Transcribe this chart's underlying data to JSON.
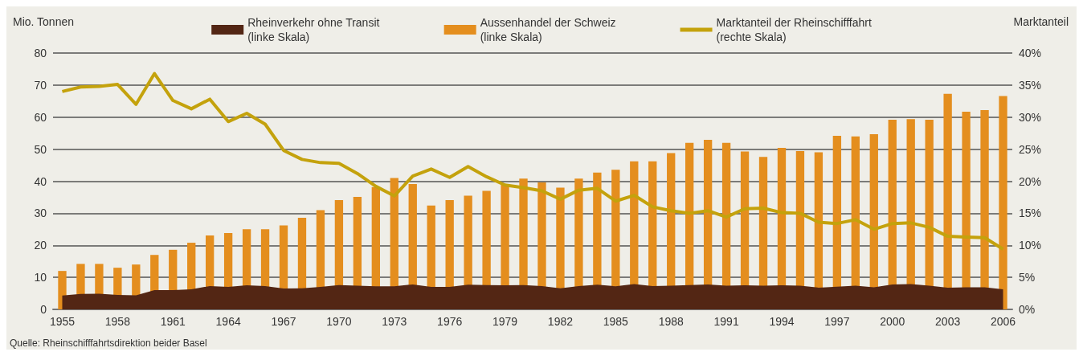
{
  "chart_data": {
    "type": "bar",
    "ylabel": "Mio. Tonnen",
    "y2label": "Marktanteil",
    "categories": [
      "1955",
      null,
      null,
      "1958",
      null,
      null,
      "1961",
      null,
      null,
      "1964",
      null,
      null,
      "1967",
      null,
      null,
      "1970",
      null,
      null,
      "1973",
      null,
      null,
      "1976",
      null,
      null,
      "1979",
      null,
      null,
      "1982",
      null,
      null,
      "1985",
      null,
      null,
      "1988",
      null,
      null,
      "1991",
      null,
      null,
      "1994",
      null,
      null,
      "1997",
      null,
      null,
      "2000",
      null,
      null,
      "2003",
      null,
      null,
      "2006"
    ],
    "series": [
      {
        "name": "Rheinverkehr ohne Transit\n(linke Skala)",
        "type": "area",
        "color": "#532614",
        "values": [
          4.3,
          4.8,
          4.9,
          4.5,
          4.4,
          6,
          6,
          6.3,
          7.3,
          7,
          7.5,
          7.3,
          6.5,
          6.6,
          7,
          7.6,
          7.4,
          7.2,
          7.2,
          7.8,
          7,
          7,
          7.7,
          7.6,
          7.5,
          7.6,
          7.3,
          6.6,
          7.3,
          7.7,
          7.2,
          7.9,
          7.3,
          7.4,
          7.6,
          7.8,
          7.4,
          7.5,
          7.4,
          7.5,
          7.4,
          6.8,
          7.1,
          7.4,
          6.9,
          7.8,
          7.9,
          7.4,
          6.8,
          6.9,
          6.9,
          6.3
        ]
      },
      {
        "name": "Aussenhandel der Schweiz\n(linke Skala)",
        "color": "#e48e1e",
        "values": [
          12,
          14.2,
          14.2,
          13,
          14,
          17,
          18.6,
          20.8,
          23.1,
          23.8,
          25,
          25,
          26.2,
          28.6,
          31,
          34.1,
          35.1,
          38.2,
          41,
          39.1,
          32.4,
          34.1,
          35.5,
          37,
          38.9,
          40.8,
          39.6,
          38,
          40.8,
          42.7,
          43.6,
          46.2,
          46.2,
          48.8,
          52,
          52.9,
          52,
          49.3,
          47.6,
          50.4,
          49.4,
          49,
          54.2,
          54,
          54.7,
          59.2,
          59.4,
          59.2,
          67.3,
          61.7,
          62.2,
          66.6
        ]
      },
      {
        "name": "Marktanteil der Rheinschifffahrt\n(rechte Skala)",
        "type": "line",
        "axis": "y2",
        "color": "#c4a20c",
        "values": [
          34,
          34.7,
          34.8,
          35.1,
          32,
          36.8,
          32.6,
          31.3,
          32.8,
          29.3,
          30.6,
          28.9,
          24.8,
          23.4,
          22.9,
          22.8,
          21.2,
          19.2,
          17.7,
          20.8,
          21.9,
          20.6,
          22.3,
          20.7,
          19.4,
          19,
          18.5,
          17.2,
          18.6,
          18.9,
          16.9,
          17.8,
          16,
          15.4,
          15,
          15.4,
          14.4,
          15.7,
          15.8,
          15.1,
          15,
          13.6,
          13.4,
          14,
          12.5,
          13.4,
          13.5,
          12.8,
          11.4,
          11.3,
          11.2,
          9.4
        ]
      }
    ],
    "ylim": [
      0,
      80
    ],
    "yticks": [
      0,
      10,
      20,
      30,
      40,
      50,
      60,
      70,
      80
    ],
    "y2lim": [
      0,
      40
    ],
    "y2ticks": [
      {
        "value": 0,
        "label": "0%"
      },
      {
        "value": 5,
        "label": "5%"
      },
      {
        "value": 10,
        "label": "10%"
      },
      {
        "value": 15,
        "label": "15%"
      },
      {
        "value": 20,
        "label": "20%"
      },
      {
        "value": 25,
        "label": "25%"
      },
      {
        "value": 30,
        "label": "30%"
      },
      {
        "value": 35,
        "label": "35%"
      },
      {
        "value": 40,
        "label": "40%"
      }
    ],
    "grid": "y",
    "legend": "top",
    "marker": "none",
    "annotations": [
      "Quelle: Rheinschifffahrtsdirektion beider Basel"
    ]
  }
}
